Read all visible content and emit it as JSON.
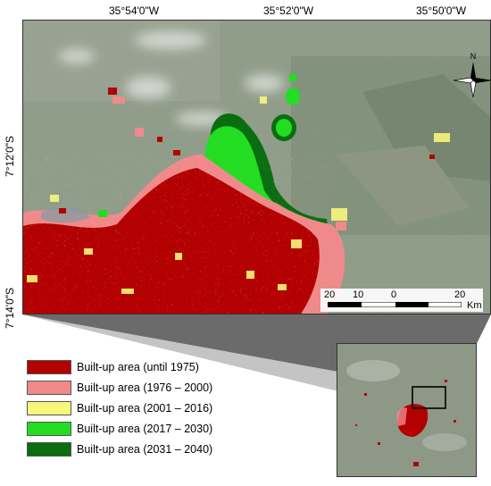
{
  "map": {
    "longitude_labels": [
      "35°54'0\"W",
      "35°52'0\"W",
      "35°50'0\"W"
    ],
    "latitude_labels": [
      "7°12'0\"S",
      "7°14'0\"S"
    ],
    "north_label": "N",
    "scale": {
      "ticks": [
        "20",
        "10",
        "0",
        "20"
      ],
      "unit": "Km"
    }
  },
  "legend": {
    "items": [
      {
        "label": "Built-up area (until 1975)",
        "color": "#b30000"
      },
      {
        "label": "Built-up area (1976 – 2000)",
        "color": "#f08a8a"
      },
      {
        "label": "Built-up area (2001 – 2016)",
        "color": "#f7f77a"
      },
      {
        "label": "Built-up area (2017 – 2030)",
        "color": "#22dd22"
      },
      {
        "label": "Built-up area (2031 – 2040)",
        "color": "#0a6e10"
      }
    ]
  }
}
